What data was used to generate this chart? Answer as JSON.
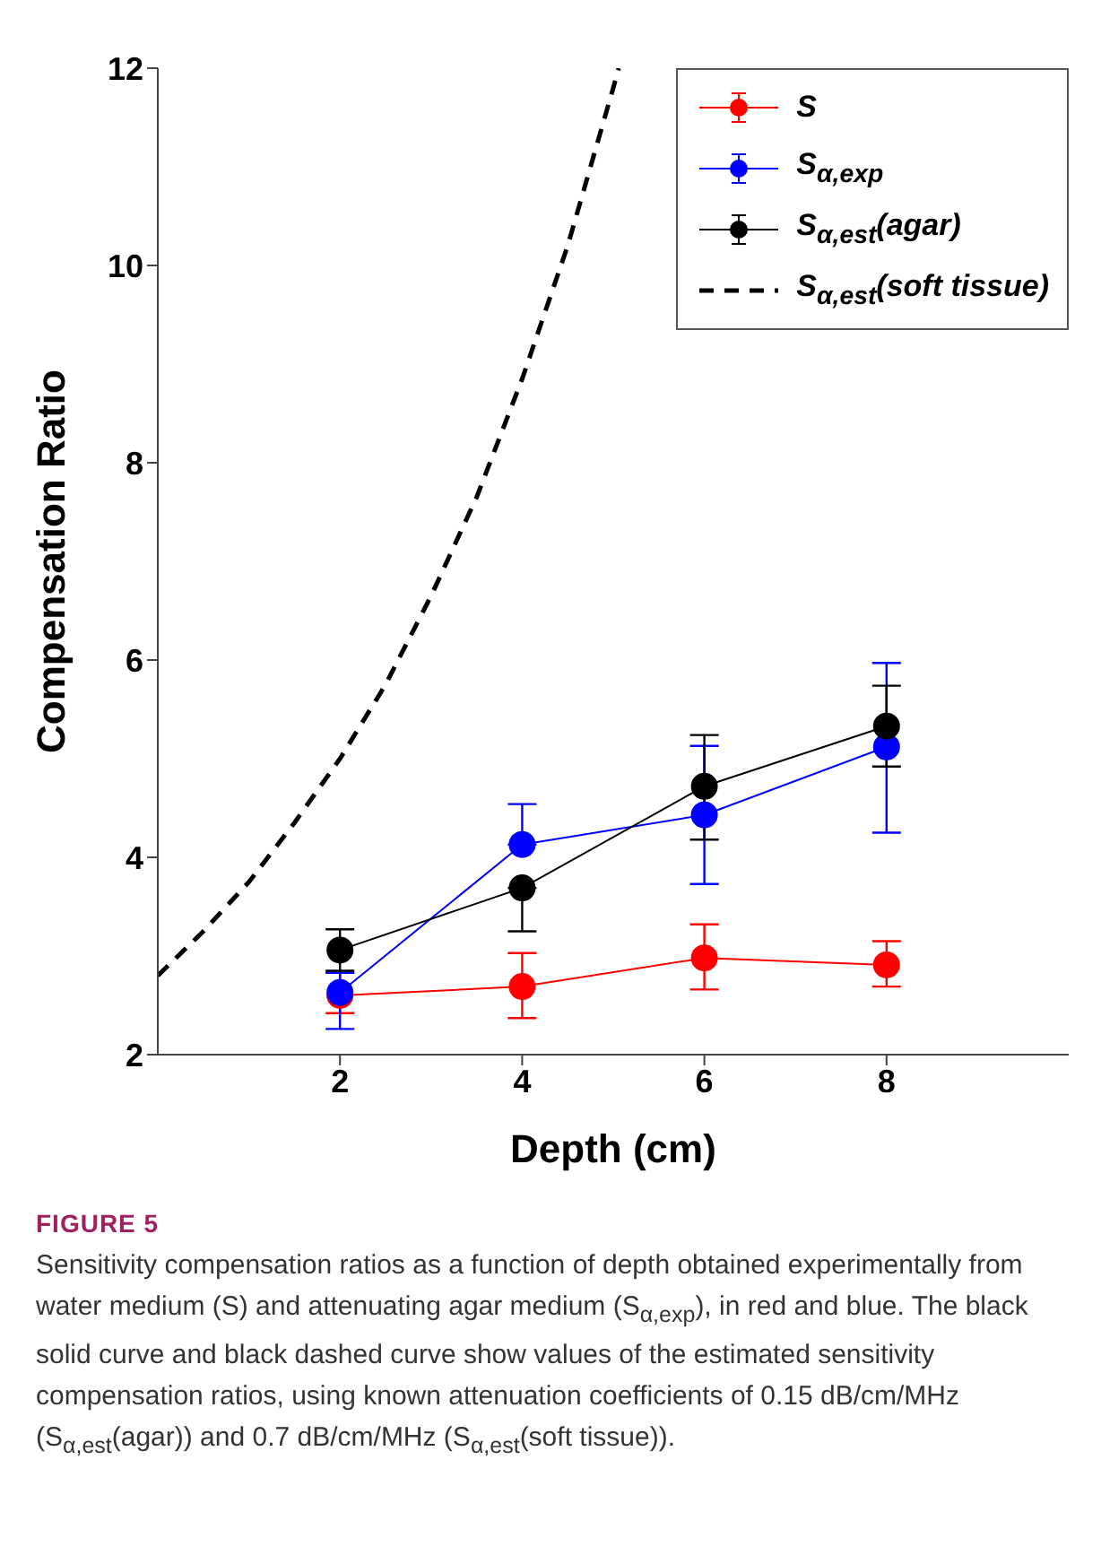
{
  "chart_data": {
    "type": "line",
    "title": "FIGURE 5",
    "xlabel": "Depth (cm)",
    "ylabel": "Compensation Ratio",
    "x": [
      2,
      4,
      6,
      8
    ],
    "xlim": [
      0,
      10
    ],
    "xticks": [
      2,
      4,
      6,
      8
    ],
    "ylim": [
      2,
      12
    ],
    "yticks": [
      2,
      4,
      6,
      8,
      10,
      12
    ],
    "grid": false,
    "legend": "top right",
    "series": [
      {
        "name": "S",
        "color": "#ff0000",
        "marker": "circle",
        "line_style": "solid",
        "values": [
          2.6,
          2.69,
          2.98,
          2.91
        ],
        "errors": [
          [
            2.42,
            2.83
          ],
          [
            2.37,
            3.03
          ],
          [
            2.66,
            3.32
          ],
          [
            2.69,
            3.15
          ]
        ]
      },
      {
        "name": "S$_{α,exp}$",
        "color": "#0000ff",
        "marker": "circle",
        "line_style": "solid",
        "values": [
          2.63,
          4.13,
          4.43,
          5.12
        ],
        "errors": [
          [
            2.26,
            2.83
          ],
          [
            4.13,
            4.54
          ],
          [
            3.73,
            5.13
          ],
          [
            4.25,
            5.97
          ]
        ]
      },
      {
        "name": "S$_{α,est}$(agar)",
        "color": "#000000",
        "marker": "circle",
        "line_style": "solid",
        "values": [
          3.06,
          3.69,
          4.72,
          5.33
        ],
        "errors": [
          [
            2.85,
            3.27
          ],
          [
            3.25,
            3.69
          ],
          [
            4.18,
            5.24
          ],
          [
            4.92,
            5.74
          ]
        ]
      },
      {
        "name": "S$_{α,est}$(soft tissue)",
        "color": "#000000",
        "marker": "none",
        "line_style": "dashed",
        "x": [
          0,
          0.5,
          1,
          1.5,
          2,
          2.5,
          3,
          3.5,
          4,
          4.5,
          5,
          5.06
        ],
        "values": [
          2.8,
          3.25,
          3.75,
          4.35,
          5.0,
          5.75,
          6.65,
          7.65,
          8.85,
          10.2,
          11.8,
          12
        ]
      }
    ],
    "annotations": [
      "Sensitivity compensation ratios as a function of depth obtained experimentally from water medium (S) and attenuating agar medium (S$_{α,exp}$), in red and blue. The black solid curve and black dashed curve show values of the estimated sensitivity compensation ratios, using known attenuation coefficients of 0.15 dB/cm/MHz (S$_{α,est}$(agar)) and 0.7 dB/cm/MHz (S$_{α,est}$(soft tissue))."
    ]
  }
}
